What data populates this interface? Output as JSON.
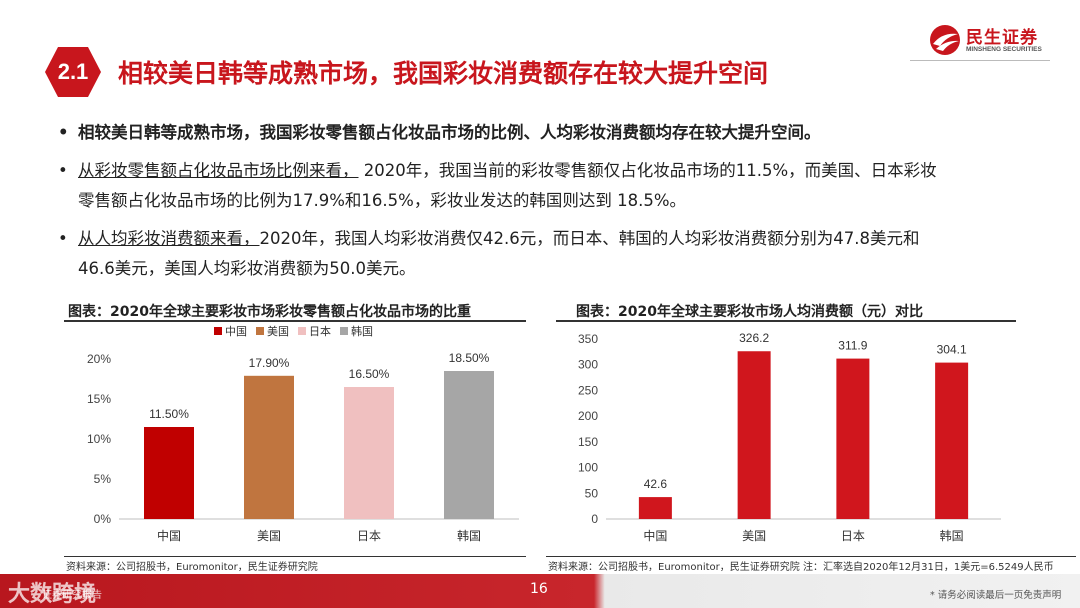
{
  "header": {
    "section_number": "2.1",
    "title": "相较美日韩等成熟市场，我国彩妆消费额存在较大提升空间",
    "logo_cn": "民生证券",
    "logo_en": "MINSHENG SECURITIES"
  },
  "bullets": {
    "b1": "相较美日韩等成熟市场，我国彩妆零售额占化妆品市场的比例、人均彩妆消费额均存在较大提升空间。",
    "b2_lead": "从彩妆零售额占化妆品市场比例来看，",
    "b2_line1": " 2020年，我国当前的彩妆零售额仅占化妆品市场的11.5%，而美国、日本彩妆",
    "b2_line2": "零售额占化妆品市场的比例为17.9%和16.5%，彩妆业发达的韩国则达到 18.5%。",
    "b3_lead": "从人均彩妆消费额来看，",
    "b3_line1": "2020年，我国人均彩妆消费仅42.6元，而日本、韩国的人均彩妆消费额分别为47.8美元和",
    "b3_line2": "46.6美元，美国人均彩妆消费额为50.0美元。",
    "bullet_char": "•"
  },
  "chart_data": [
    {
      "type": "bar",
      "title": "图表：2020年全球主要彩妆市场彩妆零售额占化妆品市场的比重",
      "categories": [
        "中国",
        "美国",
        "日本",
        "韩国"
      ],
      "values": [
        11.5,
        17.9,
        16.5,
        18.5
      ],
      "value_labels": [
        "11.50%",
        "17.90%",
        "16.50%",
        "18.50%"
      ],
      "colors": [
        "#c00000",
        "#c0753f",
        "#f0c0c0",
        "#a6a6a6"
      ],
      "legend": [
        "中国",
        "美国",
        "日本",
        "韩国"
      ],
      "legend_position": "top",
      "ylim": [
        0,
        20
      ],
      "yticks": [
        "0%",
        "5%",
        "10%",
        "15%",
        "20%"
      ],
      "ytick_values": [
        0,
        5,
        10,
        15,
        20
      ],
      "grid": false,
      "source": "资料来源：公司招股书，Euromonitor，民生证券研究院"
    },
    {
      "type": "bar",
      "title": "图表：2020年全球主要彩妆市场人均消费额（元）对比",
      "categories": [
        "中国",
        "美国",
        "日本",
        "韩国"
      ],
      "values": [
        42.6,
        326.2,
        311.9,
        304.1
      ],
      "value_labels": [
        "42.6",
        "326.2",
        "311.9",
        "304.1"
      ],
      "colors": [
        "#d0161d",
        "#d0161d",
        "#d0161d",
        "#d0161d"
      ],
      "ylim": [
        0,
        350
      ],
      "yticks": [
        "0",
        "50",
        "100",
        "150",
        "200",
        "250",
        "300",
        "350"
      ],
      "ytick_values": [
        0,
        50,
        100,
        150,
        200,
        250,
        300,
        350
      ],
      "grid": false,
      "source": "资料来源：公司招股书，Euromonitor，民生证券研究院  注：汇率选自2020年12月31日，1美元=6.5249人民币"
    }
  ],
  "footer": {
    "page": "16",
    "disclaimer": "* 请务必阅读最后一页免责声明",
    "watermark": "大数跨境",
    "watermark_small": "证券研究报告"
  }
}
